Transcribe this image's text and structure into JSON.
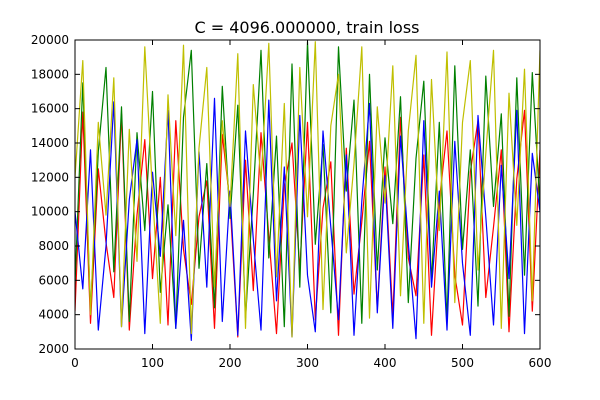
{
  "chart_data": {
    "type": "line",
    "title": "C = 4096.000000, train loss",
    "xlabel": "",
    "ylabel": "",
    "xlim": [
      0,
      600
    ],
    "ylim": [
      2000,
      20000
    ],
    "x_ticks": [
      0,
      100,
      200,
      300,
      400,
      500,
      600
    ],
    "x_tick_labels": [
      "0",
      "100",
      "200",
      "300",
      "400",
      "500",
      "600"
    ],
    "y_ticks": [
      2000,
      4000,
      6000,
      8000,
      10000,
      12000,
      14000,
      16000,
      18000,
      20000
    ],
    "y_tick_labels": [
      "2000",
      "4000",
      "6000",
      "8000",
      "10000",
      "12000",
      "14000",
      "16000",
      "18000",
      "20000"
    ],
    "grid": false,
    "legend": "none",
    "series": [
      {
        "color": "#ff0000",
        "x_step": 10,
        "values": [
          4200,
          15800,
          3500,
          12500,
          8200,
          5000,
          15700,
          3100,
          9800,
          14200,
          6100,
          12000,
          3400,
          15300,
          7800,
          4600,
          9700,
          11800,
          3200,
          14500,
          10500,
          2700,
          13000,
          5400,
          14600,
          8600,
          2900,
          11500,
          14000,
          6600,
          15200,
          3700,
          10200,
          12900,
          2800,
          13700,
          5200,
          9400,
          14100,
          4300,
          12600,
          3900,
          15500,
          7300,
          5100,
          13300,
          2800,
          10600,
          14700,
          6300,
          3400,
          12300,
          15300,
          5000,
          9100,
          13600,
          3000,
          11900,
          15900,
          4200,
          13600
        ]
      },
      {
        "color": "#008000",
        "x_step": 10,
        "values": [
          5800,
          17500,
          4200,
          13500,
          18400,
          6500,
          16100,
          3600,
          14600,
          8900,
          17000,
          5300,
          10400,
          3200,
          15500,
          19400,
          6700,
          12800,
          4400,
          17300,
          9600,
          16200,
          3800,
          11000,
          19400,
          7300,
          14400,
          3300,
          18600,
          5600,
          19900,
          8100,
          13900,
          4100,
          19600,
          11200,
          16500,
          3500,
          18000,
          6600,
          14300,
          9300,
          16700,
          4700,
          13100,
          17600,
          5900,
          15200,
          3600,
          18500,
          7800,
          13600,
          4500,
          17900,
          10300,
          15700,
          3900,
          17800,
          6300,
          18100,
          10300
        ]
      },
      {
        "color": "#0000ff",
        "x_step": 10,
        "values": [
          10000,
          5500,
          13600,
          3100,
          8000,
          16400,
          3300,
          10700,
          14200,
          2900,
          12300,
          7400,
          15900,
          3200,
          9500,
          2500,
          13500,
          5600,
          16600,
          3600,
          11200,
          2800,
          14700,
          8400,
          3100,
          16500,
          4800,
          12600,
          2700,
          15600,
          6300,
          3000,
          14700,
          9100,
          3700,
          13300,
          2800,
          10600,
          16300,
          4100,
          12100,
          3200,
          14400,
          8200,
          2600,
          15300,
          5600,
          11200,
          3100,
          14100,
          7000,
          2800,
          15600,
          9700,
          3400,
          12700,
          6100,
          15900,
          2900,
          13400,
          10000
        ]
      },
      {
        "color": "#bfbf00",
        "x_step": 10,
        "values": [
          12000,
          18800,
          4000,
          15200,
          9800,
          17800,
          3300,
          14800,
          7100,
          19600,
          11100,
          3500,
          16800,
          8600,
          19700,
          2900,
          13700,
          18400,
          5600,
          15300,
          10300,
          19200,
          3200,
          17400,
          11800,
          19800,
          6200,
          16300,
          2700,
          18400,
          9700,
          19900,
          4300,
          15000,
          18000,
          7600,
          12800,
          19600,
          3800,
          16100,
          10500,
          18500,
          5100,
          14700,
          19100,
          3500,
          17700,
          8900,
          19300,
          4700,
          15200,
          18800,
          6600,
          13400,
          19400,
          3200,
          16900,
          9200,
          18300,
          4800,
          19400
        ]
      }
    ]
  }
}
